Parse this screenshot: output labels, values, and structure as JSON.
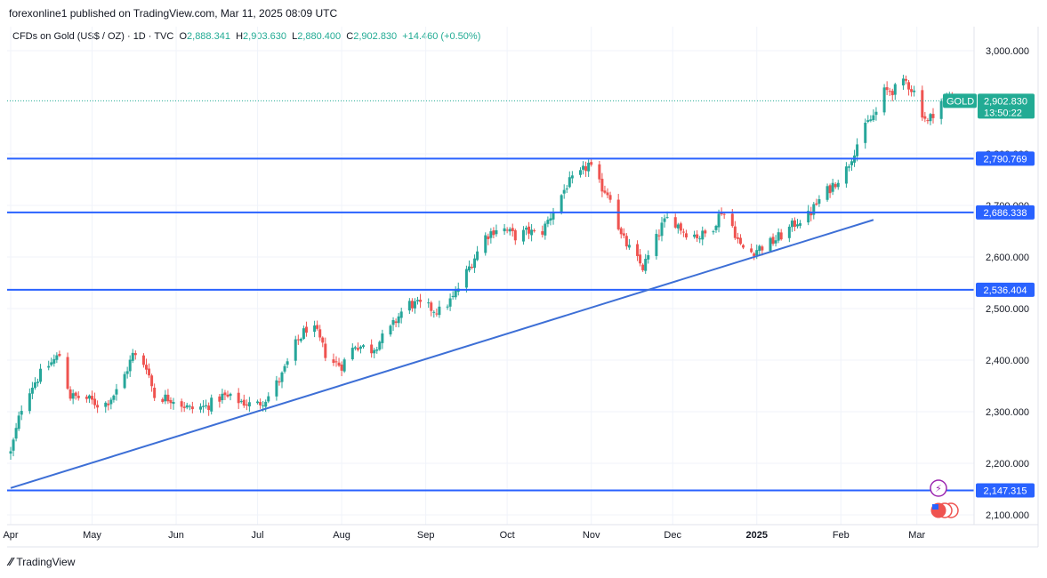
{
  "header": {
    "published": "forexonline1 published on TradingView.com, Mar 11, 2025 08:09 UTC"
  },
  "legend": {
    "symbol": "CFDs on Gold (US$ / OZ) · 1D · TVC",
    "open_label": "O",
    "open": "2,888.341",
    "high_label": "H",
    "high": "2,903.630",
    "low_label": "L",
    "low": "2,880.400",
    "close_label": "C",
    "close": "2,902.830",
    "change": "+14.460 (+0.50%)"
  },
  "price_tag": {
    "symbol": "GOLD",
    "price": "2,902.830",
    "countdown": "13:50:22",
    "color": "#22ab94"
  },
  "footer": {
    "brand": "TradingView"
  },
  "chart_data": {
    "type": "candlestick",
    "ylim": [
      2075,
      3030
    ],
    "y_ticks": [
      {
        "value": 3000,
        "label": "3,000.000"
      },
      {
        "value": 2800,
        "label": "2,800.000"
      },
      {
        "value": 2700,
        "label": "2,700.000"
      },
      {
        "value": 2600,
        "label": "2,600.000"
      },
      {
        "value": 2500,
        "label": "2,500.000"
      },
      {
        "value": 2400,
        "label": "2,400.000"
      },
      {
        "value": 2300,
        "label": "2,300.000"
      },
      {
        "value": 2200,
        "label": "2,200.000"
      },
      {
        "value": 2100,
        "label": "2,100.000"
      }
    ],
    "x_ticks": [
      {
        "label": "Apr",
        "day": 0
      },
      {
        "label": "May",
        "day": 30
      },
      {
        "label": "Jun",
        "day": 61
      },
      {
        "label": "Jul",
        "day": 91
      },
      {
        "label": "Aug",
        "day": 122
      },
      {
        "label": "Sep",
        "day": 153
      },
      {
        "label": "Oct",
        "day": 183
      },
      {
        "label": "Nov",
        "day": 214
      },
      {
        "label": "Dec",
        "day": 244
      },
      {
        "label": "2025",
        "day": 275,
        "bold": true
      },
      {
        "label": "Feb",
        "day": 306
      },
      {
        "label": "Mar",
        "day": 334
      }
    ],
    "anchors": [
      [
        0,
        2220
      ],
      [
        5,
        2330
      ],
      [
        12,
        2380
      ],
      [
        18,
        2410
      ],
      [
        22,
        2330
      ],
      [
        28,
        2325
      ],
      [
        34,
        2310
      ],
      [
        40,
        2345
      ],
      [
        45,
        2410
      ],
      [
        50,
        2390
      ],
      [
        53,
        2330
      ],
      [
        60,
        2325
      ],
      [
        66,
        2305
      ],
      [
        72,
        2310
      ],
      [
        78,
        2330
      ],
      [
        85,
        2320
      ],
      [
        90,
        2310
      ],
      [
        95,
        2330
      ],
      [
        100,
        2370
      ],
      [
        105,
        2430
      ],
      [
        110,
        2470
      ],
      [
        113,
        2450
      ],
      [
        117,
        2400
      ],
      [
        122,
        2390
      ],
      [
        127,
        2430
      ],
      [
        133,
        2420
      ],
      [
        140,
        2460
      ],
      [
        146,
        2510
      ],
      [
        152,
        2505
      ],
      [
        158,
        2495
      ],
      [
        163,
        2520
      ],
      [
        168,
        2570
      ],
      [
        175,
        2640
      ],
      [
        180,
        2660
      ],
      [
        186,
        2640
      ],
      [
        191,
        2650
      ],
      [
        195,
        2640
      ],
      [
        200,
        2690
      ],
      [
        205,
        2740
      ],
      [
        210,
        2760
      ],
      [
        213,
        2780
      ],
      [
        217,
        2740
      ],
      [
        221,
        2720
      ],
      [
        225,
        2640
      ],
      [
        230,
        2600
      ],
      [
        233,
        2580
      ],
      [
        236,
        2610
      ],
      [
        240,
        2660
      ],
      [
        243,
        2680
      ],
      [
        248,
        2650
      ],
      [
        254,
        2640
      ],
      [
        258,
        2650
      ],
      [
        262,
        2690
      ],
      [
        266,
        2660
      ],
      [
        269,
        2620
      ],
      [
        273,
        2610
      ],
      [
        277,
        2620
      ],
      [
        281,
        2630
      ],
      [
        286,
        2650
      ],
      [
        290,
        2670
      ],
      [
        294,
        2680
      ],
      [
        298,
        2710
      ],
      [
        303,
        2740
      ],
      [
        308,
        2770
      ],
      [
        312,
        2820
      ],
      [
        316,
        2860
      ],
      [
        319,
        2880
      ],
      [
        322,
        2920
      ],
      [
        326,
        2925
      ],
      [
        330,
        2940
      ],
      [
        333,
        2920
      ],
      [
        336,
        2880
      ],
      [
        338,
        2860
      ],
      [
        342,
        2900
      ],
      [
        346,
        2910
      ],
      [
        350,
        2902
      ]
    ],
    "horizontal_levels": [
      {
        "value": 2790.769,
        "label": "2,790.769"
      },
      {
        "value": 2686.338,
        "label": "2,686.338"
      },
      {
        "value": 2536.404,
        "label": "2,536.404"
      },
      {
        "value": 2147.315,
        "label": "2,147.315"
      }
    ],
    "trendline": {
      "start": [
        0,
        2152
      ],
      "end": [
        318,
        2672
      ]
    },
    "last_price": 2902.83,
    "colors": {
      "up": "#26a69a",
      "down": "#ef5350",
      "level": "#2962ff",
      "trend": "#3d6fd6"
    }
  }
}
